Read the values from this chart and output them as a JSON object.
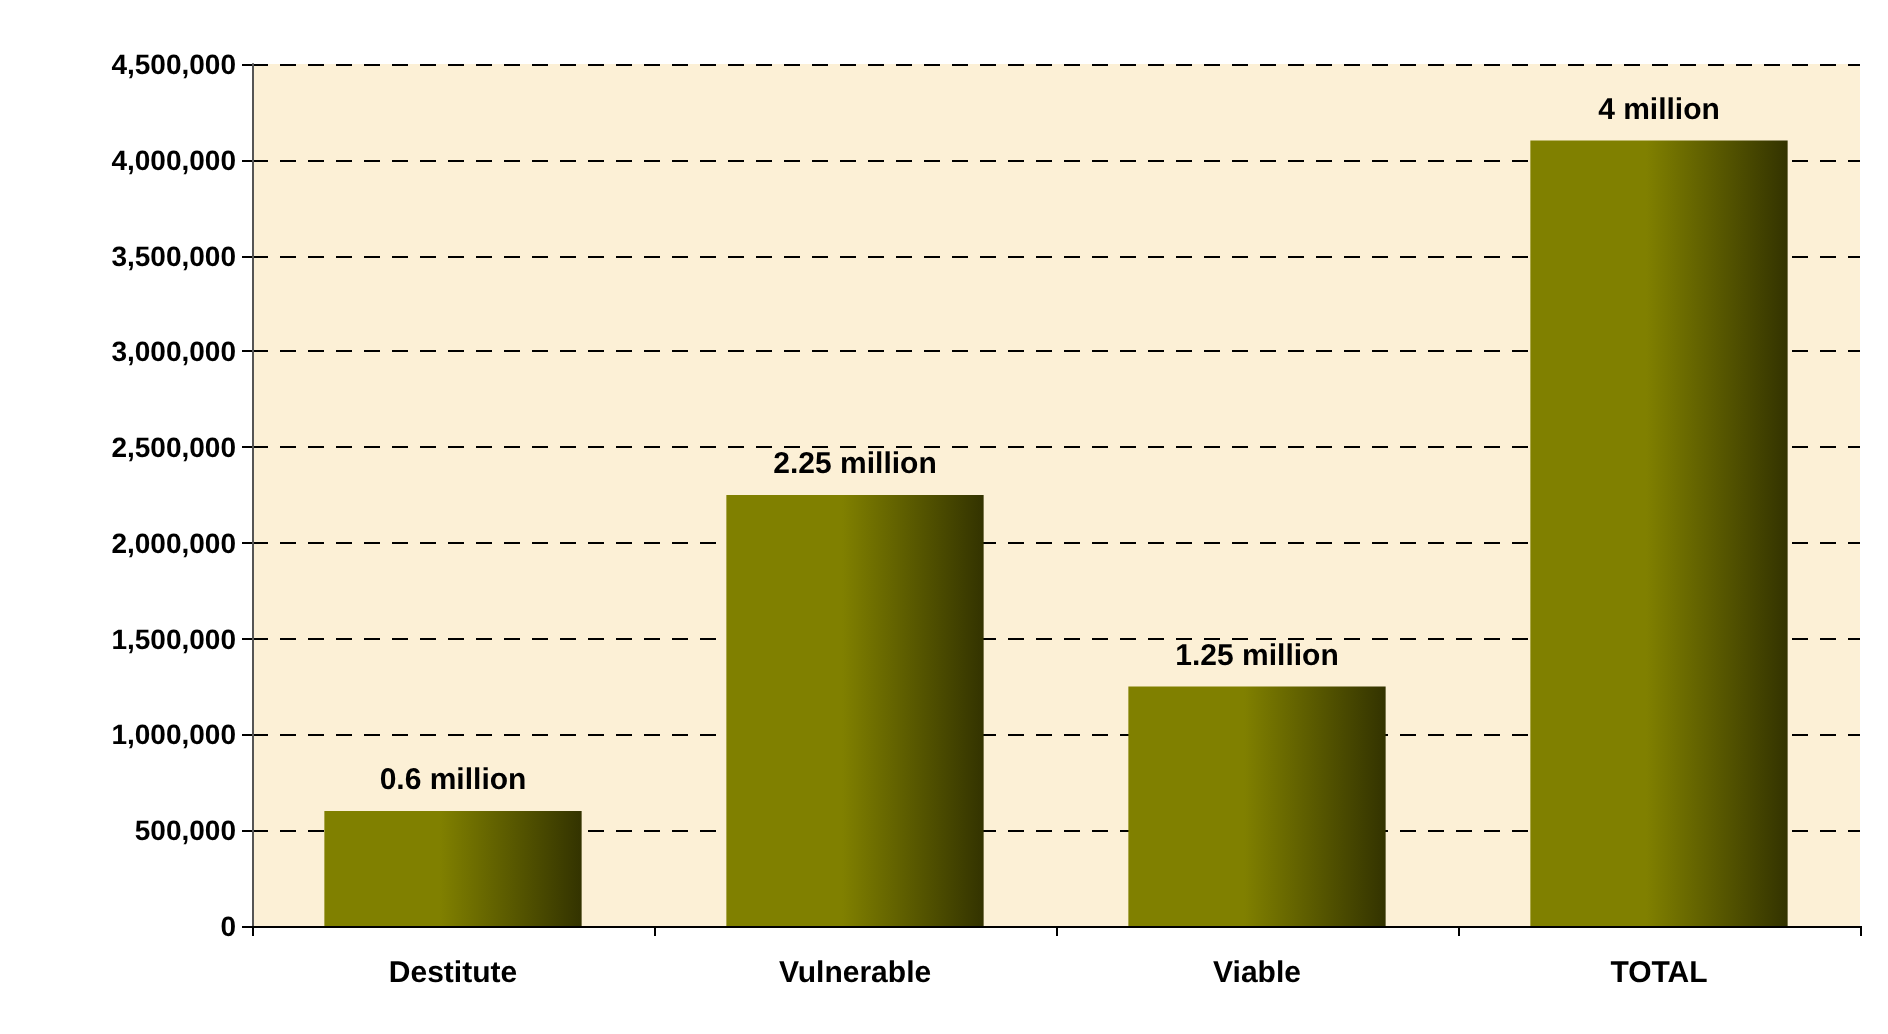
{
  "chart_data": {
    "type": "bar",
    "categories": [
      "Destitute",
      "Vulnerable",
      "Viable",
      "TOTAL"
    ],
    "values": [
      600000,
      2250000,
      1250000,
      4100000
    ],
    "value_labels": [
      "0.6 million",
      "2.25 million",
      "1.25 million",
      "4 million"
    ],
    "color": "#808000",
    "ylim": [
      0,
      4500000
    ],
    "yticks": [
      0,
      {
        "value": 500000,
        "label": "500,000"
      },
      {
        "value": 1000000,
        "label": "1,000,000"
      },
      {
        "value": 1500000,
        "label": "1,500,000"
      },
      {
        "value": 2000000,
        "label": "2,000,000"
      },
      {
        "value": 2500000,
        "label": "2,500,000"
      },
      {
        "value": 3000000,
        "label": "3,000,000"
      },
      {
        "value": 3500000,
        "label": "3,500,000"
      },
      {
        "value": 4000000,
        "label": "4,000,000"
      },
      {
        "value": 4500000,
        "label": "4,500,000"
      }
    ],
    "grid": "y"
  }
}
